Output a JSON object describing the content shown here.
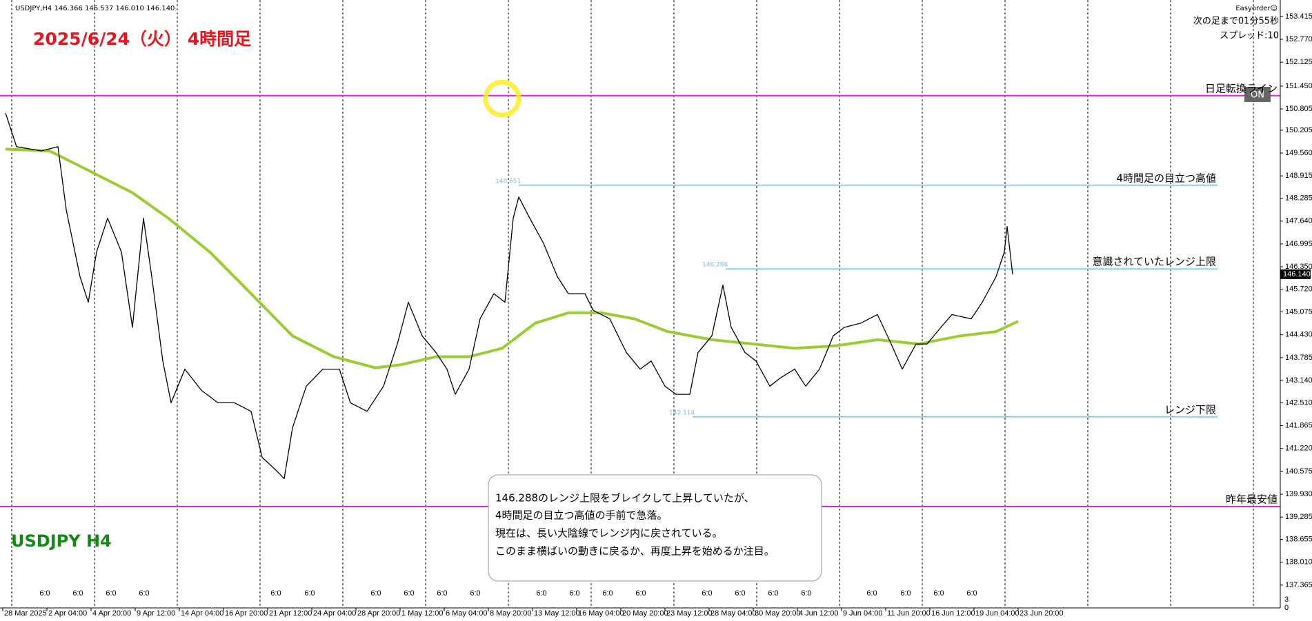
{
  "chart_data": {
    "type": "line",
    "info": "USDJPY,H4  146.366 146.537 146.010 146.140",
    "title": "2025/6/24（火） 4時間足",
    "symbol_label": "USDJPY H4",
    "tool_name": "Easyorder☺",
    "next_bar": "次の足まで01分55秒",
    "spread": "スプレッド:10",
    "button": "ON",
    "note": [
      "146.288のレンジ上限をブレイクして上昇していたが、",
      "4時間足の目立つ高値の手前で急落。",
      "現在は、長い大陰線でレンジ内に戻されている。",
      "このまま横ばいの動きに戻るか、再度上昇を始めるか注目。"
    ],
    "corner_labels": [
      "3",
      "0"
    ],
    "session_labels": [
      "6:0",
      "6:0",
      "6:0",
      "6:0",
      "6:0",
      "6:0",
      "6:0",
      "6:0",
      "6:0",
      "6:0",
      "6:0",
      "6:0",
      "6:0",
      "6:0",
      "6:0",
      "6:0",
      "6:0",
      "6:0",
      "6:0",
      "6:0",
      "6:0",
      "6:0"
    ],
    "xlim": [
      0,
      464
    ],
    "ylim": [
      136.76,
      153.88
    ],
    "xticks": [
      {
        "value": 1,
        "label": "28 Mar 2025"
      },
      {
        "value": 17,
        "label": "2 Apr 04:00"
      },
      {
        "value": 33,
        "label": "4 Apr 20:00"
      },
      {
        "value": 49,
        "label": "9 Apr 12:00"
      },
      {
        "value": 65,
        "label": "14 Apr 04:00"
      },
      {
        "value": 81,
        "label": "16 Apr 20:00"
      },
      {
        "value": 97,
        "label": "21 Apr 12:00"
      },
      {
        "value": 113,
        "label": "24 Apr 04:00"
      },
      {
        "value": 129,
        "label": "28 Apr 20:00"
      },
      {
        "value": 145,
        "label": "1 May 12:00"
      },
      {
        "value": 161,
        "label": "6 May 04:00"
      },
      {
        "value": 177,
        "label": "8 May 20:00"
      },
      {
        "value": 193,
        "label": "13 May 12:00"
      },
      {
        "value": 209,
        "label": "16 May 04:00"
      },
      {
        "value": 225,
        "label": "20 May 20:00"
      },
      {
        "value": 241,
        "label": "23 May 12:00"
      },
      {
        "value": 257,
        "label": "28 May 04:00"
      },
      {
        "value": 273,
        "label": "30 May 20:00"
      },
      {
        "value": 289,
        "label": "4 Jun 12:00"
      },
      {
        "value": 305,
        "label": "9 Jun 04:00"
      },
      {
        "value": 321,
        "label": "11 Jun 20:00"
      },
      {
        "value": 337,
        "label": "16 Jun 12:00"
      },
      {
        "value": 353,
        "label": "19 Jun 04:00"
      },
      {
        "value": 369,
        "label": "23 Jun 20:00"
      }
    ],
    "yticks": [
      153.415,
      {
        "value": 152.77,
        "label": "152.770"
      },
      152.125,
      {
        "value": 151.45,
        "label": "151.450"
      },
      150.805,
      150.205,
      {
        "value": 149.56,
        "label": "149.560"
      },
      148.915,
      148.285,
      {
        "value": 147.64,
        "label": "147.640"
      },
      146.995,
      {
        "value": 146.35,
        "label": "146.350"
      },
      {
        "value": 145.72,
        "label": "145.720"
      },
      145.075,
      {
        "value": 144.43,
        "label": "144.430"
      },
      143.785,
      {
        "value": 143.14,
        "label": "143.140"
      },
      {
        "value": 142.51,
        "label": "142.510"
      },
      141.865,
      {
        "value": 141.22,
        "label": "141.220"
      },
      140.575,
      {
        "value": 139.93,
        "label": "139.930"
      },
      139.285,
      138.655,
      {
        "value": 138.01,
        "label": "138.010"
      },
      137.365
    ],
    "current": {
      "value": 146.14,
      "label": "146.140"
    },
    "levels": [
      {
        "value": 151.18,
        "label": "日足転換ライン",
        "color": "#e21ee2"
      },
      {
        "value": 148.651,
        "label": "4時間足の目立つ高値",
        "color": "#87cefa",
        "from": 188
      },
      {
        "value": 146.288,
        "label": "意識されていたレンジ上限",
        "color": "#87cefa",
        "from": 263
      },
      {
        "value": 142.114,
        "label": "レンジ下限",
        "color": "#87cefa",
        "from": 251
      },
      {
        "value": 139.58,
        "label": "昨年最安値",
        "color": "#e21ee2"
      }
    ],
    "series": [
      {
        "color": "#9acd32",
        "x": [
          2,
          18,
          30,
          48,
          61,
          76,
          91,
          106,
          121,
          136,
          145,
          158,
          170,
          182,
          194,
          206,
          218,
          230,
          242,
          258,
          273,
          288,
          303,
          318,
          333,
          348,
          361,
          369
        ],
        "values": [
          149.67,
          149.62,
          149.15,
          148.44,
          147.72,
          146.77,
          145.59,
          144.4,
          143.81,
          143.5,
          143.58,
          143.81,
          143.81,
          144.05,
          144.76,
          145.05,
          145.05,
          144.88,
          144.52,
          144.29,
          144.17,
          144.05,
          144.12,
          144.29,
          144.17,
          144.4,
          144.52,
          144.81
        ]
      },
      {
        "color": "#000000",
        "x": [
          2,
          6,
          15,
          21,
          24,
          29,
          32,
          35,
          39,
          44,
          48,
          52,
          55,
          59,
          62,
          67,
          73,
          79,
          85,
          91,
          95,
          100,
          103,
          106,
          111,
          117,
          123,
          127,
          133,
          139,
          144,
          148,
          153,
          158,
          162,
          165,
          170,
          174,
          179,
          183,
          186,
          188,
          192,
          197,
          202,
          206,
          212,
          215,
          221,
          227,
          232,
          236,
          241,
          245,
          250,
          253,
          258,
          262,
          265,
          270,
          274,
          279,
          283,
          288,
          292,
          297,
          302,
          306,
          312,
          318,
          323,
          327,
          332,
          336,
          341,
          345,
          352,
          356,
          361,
          364,
          365,
          367
        ],
        "values": [
          150.69,
          149.74,
          149.62,
          149.74,
          147.96,
          146.07,
          145.35,
          146.77,
          147.72,
          146.77,
          144.64,
          147.72,
          146.07,
          143.69,
          142.51,
          143.46,
          142.86,
          142.51,
          142.51,
          142.27,
          140.97,
          140.61,
          140.37,
          141.8,
          142.98,
          143.46,
          143.46,
          142.51,
          142.27,
          142.98,
          144.17,
          145.35,
          144.4,
          143.93,
          143.46,
          142.75,
          143.46,
          144.88,
          145.59,
          145.35,
          147.72,
          148.32,
          147.72,
          147.01,
          146.07,
          145.59,
          145.59,
          145.12,
          144.88,
          143.93,
          143.46,
          143.69,
          142.98,
          142.75,
          142.75,
          143.93,
          144.4,
          145.83,
          144.64,
          143.93,
          143.69,
          142.98,
          143.22,
          143.46,
          142.98,
          143.46,
          144.4,
          144.64,
          144.76,
          145.0,
          144.17,
          143.46,
          144.17,
          144.17,
          144.64,
          145.0,
          144.88,
          145.35,
          146.07,
          146.77,
          147.49,
          146.14
        ]
      }
    ]
  }
}
